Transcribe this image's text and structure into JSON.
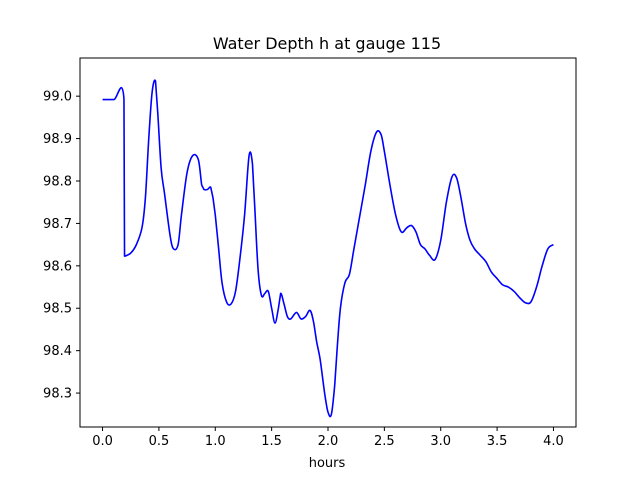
{
  "chart_data": {
    "type": "line",
    "title": "Water Depth h at gauge 115",
    "xlabel": "hours",
    "ylabel": "",
    "xlim": [
      -0.2,
      4.2
    ],
    "ylim": [
      98.22,
      99.09
    ],
    "xticks": [
      0.0,
      0.5,
      1.0,
      1.5,
      2.0,
      2.5,
      3.0,
      3.5,
      4.0
    ],
    "xtick_labels": [
      "0.0",
      "0.5",
      "1.0",
      "1.5",
      "2.0",
      "2.5",
      "3.0",
      "3.5",
      "4.0"
    ],
    "yticks": [
      98.3,
      98.4,
      98.5,
      98.6,
      98.7,
      98.8,
      98.9,
      99.0
    ],
    "ytick_labels": [
      "98.3",
      "98.4",
      "98.5",
      "98.6",
      "98.7",
      "98.8",
      "98.9",
      "99.0"
    ],
    "grid": false,
    "color": "#0000ff",
    "series": [
      {
        "x": [
          0.0,
          0.1,
          0.19,
          0.195,
          0.2,
          0.25,
          0.3,
          0.35,
          0.38,
          0.41,
          0.44,
          0.47,
          0.49,
          0.52,
          0.55,
          0.6,
          0.63,
          0.67,
          0.7,
          0.75,
          0.8,
          0.85,
          0.88,
          0.9,
          0.93,
          0.96,
          0.98,
          1.0,
          1.03,
          1.06,
          1.1,
          1.14,
          1.18,
          1.22,
          1.26,
          1.3,
          1.33,
          1.35,
          1.38,
          1.41,
          1.44,
          1.47,
          1.5,
          1.53,
          1.56,
          1.58,
          1.61,
          1.64,
          1.67,
          1.72,
          1.76,
          1.8,
          1.84,
          1.87,
          1.9,
          1.93,
          1.97,
          2.0,
          2.03,
          2.06,
          2.08,
          2.11,
          2.15,
          2.19,
          2.23,
          2.27,
          2.33,
          2.38,
          2.43,
          2.47,
          2.5,
          2.55,
          2.6,
          2.65,
          2.7,
          2.74,
          2.78,
          2.82,
          2.86,
          2.9,
          2.95,
          3.0,
          3.05,
          3.1,
          3.14,
          3.18,
          3.22,
          3.26,
          3.3,
          3.35,
          3.4,
          3.45,
          3.5,
          3.55,
          3.6,
          3.65,
          3.7,
          3.75,
          3.8,
          3.85,
          3.9,
          3.95,
          4.0
        ],
        "values": [
          98.992,
          98.992,
          98.993,
          98.623,
          98.623,
          98.63,
          98.65,
          98.69,
          98.76,
          98.9,
          99.01,
          99.035,
          98.96,
          98.83,
          98.77,
          98.67,
          98.64,
          98.65,
          98.72,
          98.82,
          98.86,
          98.85,
          98.79,
          98.78,
          98.78,
          98.785,
          98.76,
          98.72,
          98.64,
          98.56,
          98.515,
          98.51,
          98.54,
          98.62,
          98.72,
          98.86,
          98.84,
          98.74,
          98.59,
          98.53,
          98.535,
          98.54,
          98.5,
          98.465,
          98.5,
          98.535,
          98.51,
          98.48,
          98.475,
          98.49,
          98.475,
          98.48,
          98.495,
          98.47,
          98.42,
          98.38,
          98.3,
          98.255,
          98.25,
          98.32,
          98.4,
          98.5,
          98.56,
          98.58,
          98.64,
          98.7,
          98.79,
          98.87,
          98.915,
          98.91,
          98.87,
          98.79,
          98.72,
          98.68,
          98.69,
          98.695,
          98.68,
          98.65,
          98.64,
          98.625,
          98.615,
          98.66,
          98.75,
          98.81,
          98.808,
          98.76,
          98.7,
          98.66,
          98.64,
          98.625,
          98.61,
          98.585,
          98.57,
          98.555,
          98.55,
          98.54,
          98.525,
          98.513,
          98.515,
          98.55,
          98.6,
          98.64,
          98.65
        ]
      }
    ]
  }
}
